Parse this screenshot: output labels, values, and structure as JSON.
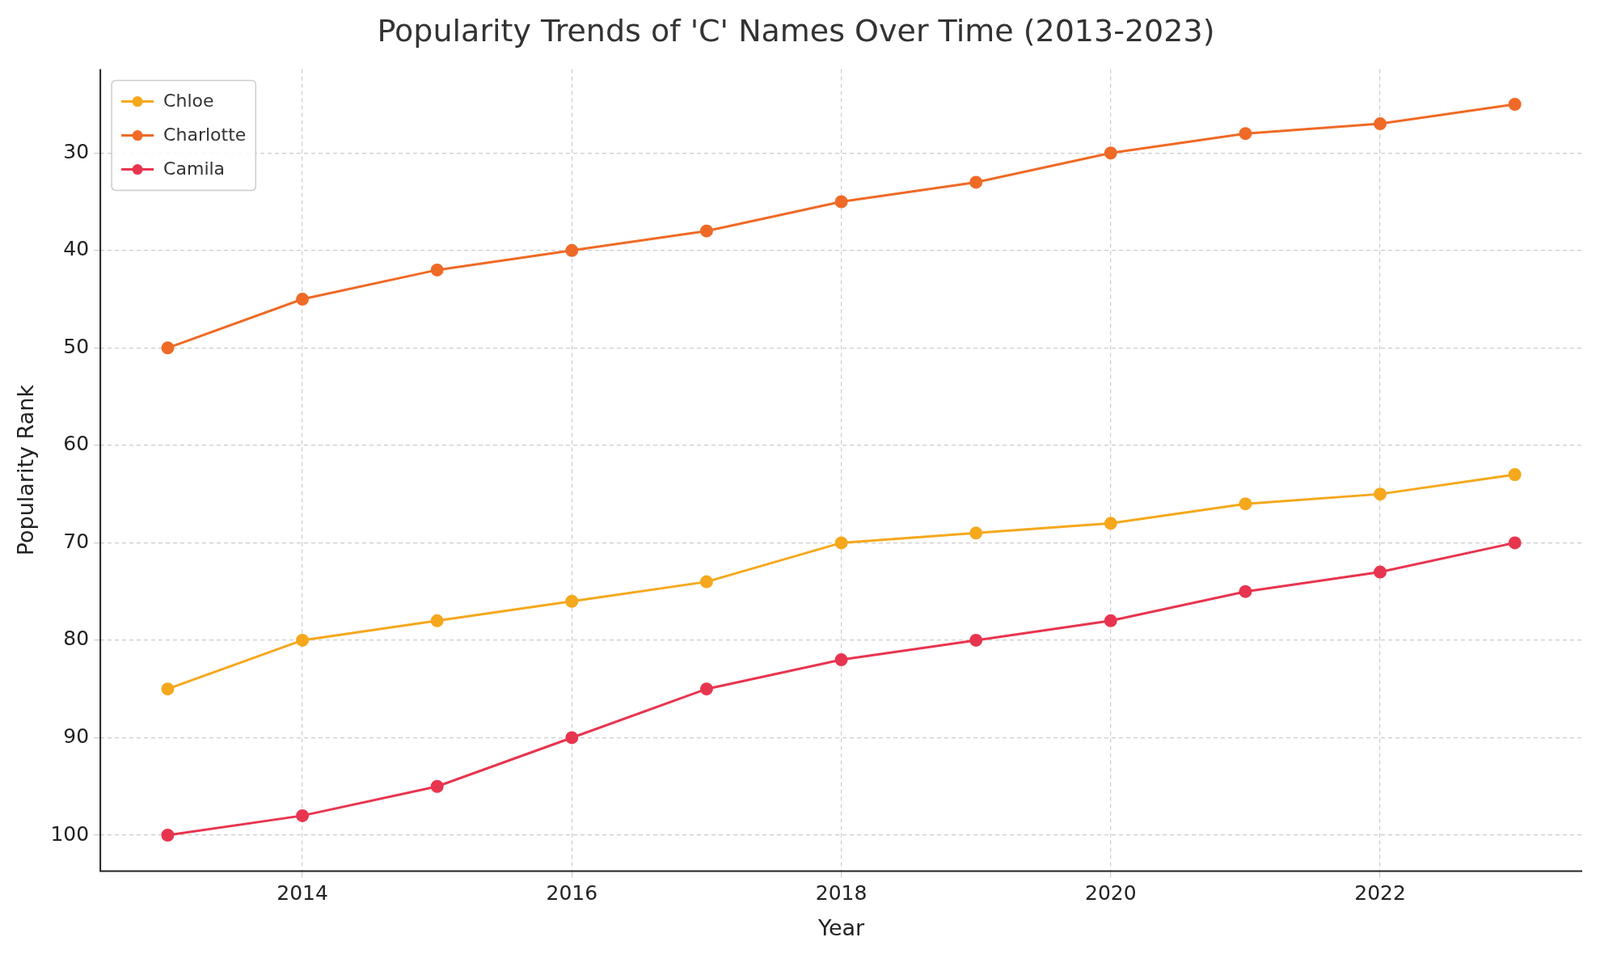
{
  "chart_data": {
    "type": "line",
    "title": "Popularity Trends of 'C' Names Over Time (2013-2023)",
    "x_label": "Year",
    "y_label": "Popularity Rank",
    "x": [
      2013,
      2014,
      2015,
      2016,
      2017,
      2018,
      2019,
      2020,
      2021,
      2022,
      2023
    ],
    "series": [
      {
        "name": "Chloe",
        "color": "#f5a81c",
        "values": [
          85,
          80,
          78,
          76,
          74,
          70,
          69,
          68,
          66,
          65,
          63
        ]
      },
      {
        "name": "Charlotte",
        "color": "#ef6a26",
        "values": [
          50,
          45,
          42,
          40,
          38,
          35,
          33,
          30,
          28,
          27,
          25
        ]
      },
      {
        "name": "Camila",
        "color": "#e8354f",
        "values": [
          100,
          98,
          95,
          90,
          85,
          82,
          80,
          78,
          75,
          73,
          70
        ]
      }
    ],
    "xlim": [
      2012.5,
      2023.5
    ],
    "ylim": [
      103.7,
      21.4
    ],
    "xticks": [
      2014,
      2016,
      2018,
      2020,
      2022
    ],
    "yticks": [
      30,
      40,
      50,
      60,
      70,
      80,
      90,
      100
    ],
    "grid": true,
    "legend": "upper left",
    "marker": "circle",
    "line_style": "solid"
  }
}
